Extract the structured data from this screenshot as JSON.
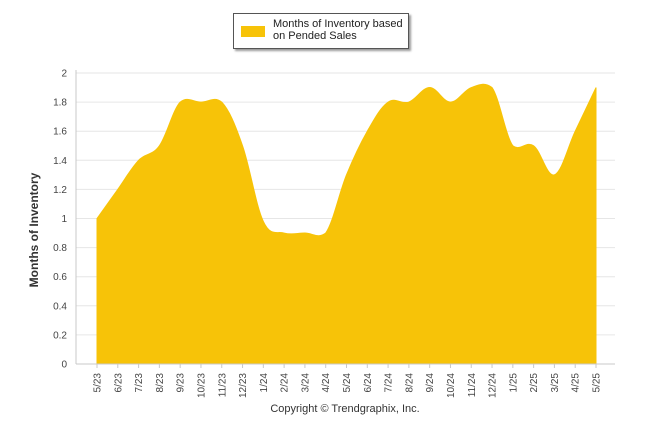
{
  "chart_data": {
    "type": "area",
    "x": [
      "5/23",
      "6/23",
      "7/23",
      "8/23",
      "9/23",
      "10/23",
      "11/23",
      "12/23",
      "1/24",
      "2/24",
      "3/24",
      "4/24",
      "5/24",
      "6/24",
      "7/24",
      "8/24",
      "9/24",
      "10/24",
      "11/24",
      "12/24",
      "1/25",
      "2/25",
      "3/25",
      "4/25",
      "5/25"
    ],
    "series": [
      {
        "name": "Months of Inventory based on Pended Sales",
        "values": [
          1.0,
          1.2,
          1.4,
          1.5,
          1.8,
          1.8,
          1.8,
          1.5,
          0.98,
          0.9,
          0.9,
          0.9,
          1.3,
          1.6,
          1.8,
          1.8,
          1.9,
          1.8,
          1.9,
          1.9,
          1.5,
          1.5,
          1.3,
          1.6,
          1.9
        ],
        "color": "#f7c308"
      }
    ],
    "ylabel": "Months of Inventory",
    "xlabel": "",
    "ylim": [
      0,
      2
    ],
    "yticks": [
      0,
      0.2,
      0.4,
      0.6,
      0.8,
      1,
      1.2,
      1.4,
      1.6,
      1.8,
      2
    ],
    "grid": true,
    "legend_position": "top-center"
  },
  "footer": {
    "copyright": "Copyright © Trendgraphix, Inc."
  }
}
